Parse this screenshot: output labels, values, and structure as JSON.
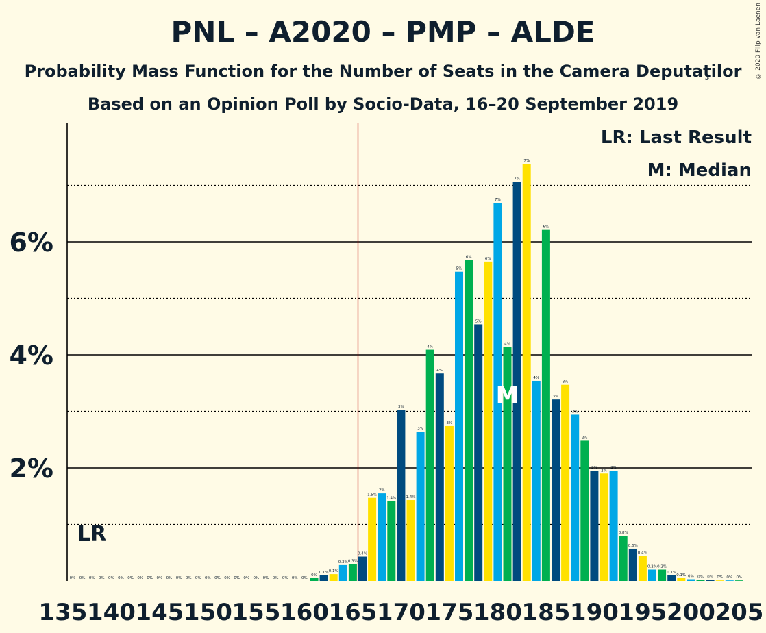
{
  "title": "PNL – A2020 – PMP – ALDE",
  "subtitle": "Probability Mass Function for the Number of Seats in the Camera Deputaţilor",
  "subtitle2": "Based on an Opinion Poll by Socio-Data, 16–20 September 2019",
  "copyright": "© 2020 Filip van Laenen",
  "legend": {
    "lr": "LR: Last Result",
    "m": "M: Median"
  },
  "colors": {
    "background": "#fffbe6",
    "yellow": "#ffe100",
    "blue": "#00a7e6",
    "green": "#00b050",
    "navy": "#004b7f",
    "last_result_line": "#c00000",
    "text": "#0f1f2e"
  },
  "chart_data": {
    "type": "bar",
    "xlim": [
      135,
      205
    ],
    "ylim": [
      0,
      8
    ],
    "y_ticks_labeled": [
      2,
      4,
      6
    ],
    "y_tick_labels": [
      "2%",
      "4%",
      "6%"
    ],
    "y_gridlines_solid": [
      2,
      4,
      6
    ],
    "y_gridlines_dotted": [
      1,
      3,
      5,
      7
    ],
    "x_tick_labels": [
      "135",
      "140",
      "145",
      "150",
      "155",
      "160",
      "165",
      "170",
      "175",
      "180",
      "185",
      "190",
      "195",
      "200",
      "205"
    ],
    "last_result": {
      "seats": 166,
      "label": "LR"
    },
    "median": {
      "seats": 181,
      "label": "M"
    },
    "color_cycle": [
      "blue",
      "green",
      "navy",
      "yellow"
    ],
    "x": [
      136,
      137,
      138,
      139,
      140,
      141,
      142,
      143,
      144,
      145,
      146,
      147,
      148,
      149,
      150,
      151,
      152,
      153,
      154,
      155,
      156,
      157,
      158,
      159,
      160,
      161,
      162,
      163,
      164,
      165,
      166,
      167,
      168,
      169,
      170,
      171,
      172,
      173,
      174,
      175,
      176,
      177,
      178,
      179,
      180,
      181,
      182,
      183,
      184,
      185,
      186,
      187,
      188,
      189,
      190,
      191,
      192,
      193,
      194,
      195,
      196,
      197,
      198,
      199,
      200,
      201,
      202,
      203,
      204,
      205
    ],
    "values": [
      0,
      0,
      0,
      0,
      0,
      0,
      0,
      0,
      0,
      0,
      0,
      0,
      0,
      0,
      0,
      0,
      0,
      0,
      0,
      0,
      0,
      0,
      0,
      0,
      0,
      0.05,
      0.1,
      0.12,
      0.28,
      0.3,
      0.43,
      1.47,
      1.55,
      1.41,
      3.03,
      1.43,
      2.64,
      4.09,
      3.67,
      2.74,
      5.47,
      5.68,
      4.54,
      5.65,
      6.69,
      4.14,
      7.06,
      7.38,
      3.54,
      6.21,
      3.21,
      3.47,
      2.94,
      2.48,
      1.95,
      1.9,
      1.95,
      0.8,
      0.57,
      0.44,
      0.2,
      0.2,
      0.1,
      0.05,
      0.03,
      0.02,
      0.02,
      0.01,
      0.01,
      0.01
    ],
    "labels": [
      "0%",
      "0%",
      "0%",
      "0%",
      "0%",
      "0%",
      "0%",
      "0%",
      "0%",
      "0%",
      "0%",
      "0%",
      "0%",
      "0%",
      "0%",
      "0%",
      "0%",
      "0%",
      "0%",
      "0%",
      "0%",
      "0%",
      "0%",
      "0%",
      "0%",
      "0%",
      "0.1%",
      "0.1%",
      "0.3%",
      "0.3%",
      "0.4%",
      "1.5%",
      "2%",
      "1.4%",
      "3%",
      "1.4%",
      "3%",
      "4%",
      "4%",
      "3%",
      "5%",
      "6%",
      "5%",
      "6%",
      "7%",
      "4%",
      "7%",
      "7%",
      "4%",
      "6%",
      "3%",
      "3%",
      "3%",
      "2%",
      "2%",
      "2%",
      "2%",
      "0.8%",
      "0.6%",
      "0.4%",
      "0.2%",
      "0.2%",
      "0.1%",
      "0.1%",
      "0%",
      "0%",
      "0%",
      "0%",
      "0%",
      "0%"
    ]
  }
}
